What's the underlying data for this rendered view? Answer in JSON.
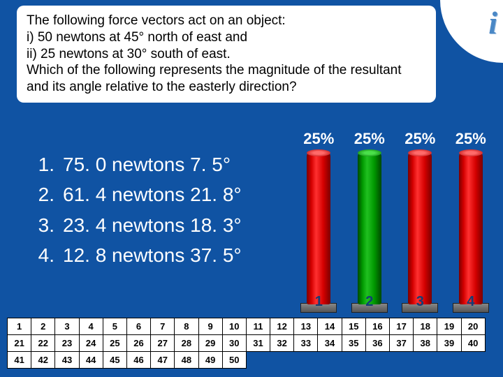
{
  "question": {
    "line1": "The following force vectors act on an object:",
    "line2": "i) 50 newtons at 45° north of east and",
    "line3": "ii) 25 newtons at 30° south of east.",
    "line4": "Which of the following represents the magnitude of the resultant",
    "line5": "and its angle relative to the easterly direction?"
  },
  "corner_icon_text": "i",
  "answers": [
    {
      "num": "1.",
      "text": "75. 0 newtons 7. 5°"
    },
    {
      "num": "2.",
      "text": "61. 4 newtons 21. 8°"
    },
    {
      "num": "3.",
      "text": "23. 4 newtons 18. 3°"
    },
    {
      "num": "4.",
      "text": "12. 8 newtons 37. 5°"
    }
  ],
  "chart": {
    "type": "bar",
    "percent_labels": [
      "25%",
      "25%",
      "25%",
      "25%"
    ],
    "bars": [
      {
        "label": "1",
        "color": "red"
      },
      {
        "label": "2",
        "color": "green"
      },
      {
        "label": "3",
        "color": "red"
      },
      {
        "label": "4",
        "color": "red"
      }
    ],
    "colors": {
      "red": "#d40000",
      "green": "#009800",
      "base": "#666666"
    },
    "background_color": "#1053a3"
  },
  "grid": {
    "rows": [
      [
        "1",
        "2",
        "3",
        "4",
        "5",
        "6",
        "7",
        "8",
        "9",
        "10",
        "11",
        "12",
        "13",
        "14",
        "15",
        "16",
        "17",
        "18",
        "19",
        "20"
      ],
      [
        "21",
        "22",
        "23",
        "24",
        "25",
        "26",
        "27",
        "28",
        "29",
        "30",
        "31",
        "32",
        "33",
        "34",
        "35",
        "36",
        "37",
        "38",
        "39",
        "40"
      ],
      [
        "41",
        "42",
        "43",
        "44",
        "45",
        "46",
        "47",
        "48",
        "49",
        "50"
      ]
    ]
  }
}
